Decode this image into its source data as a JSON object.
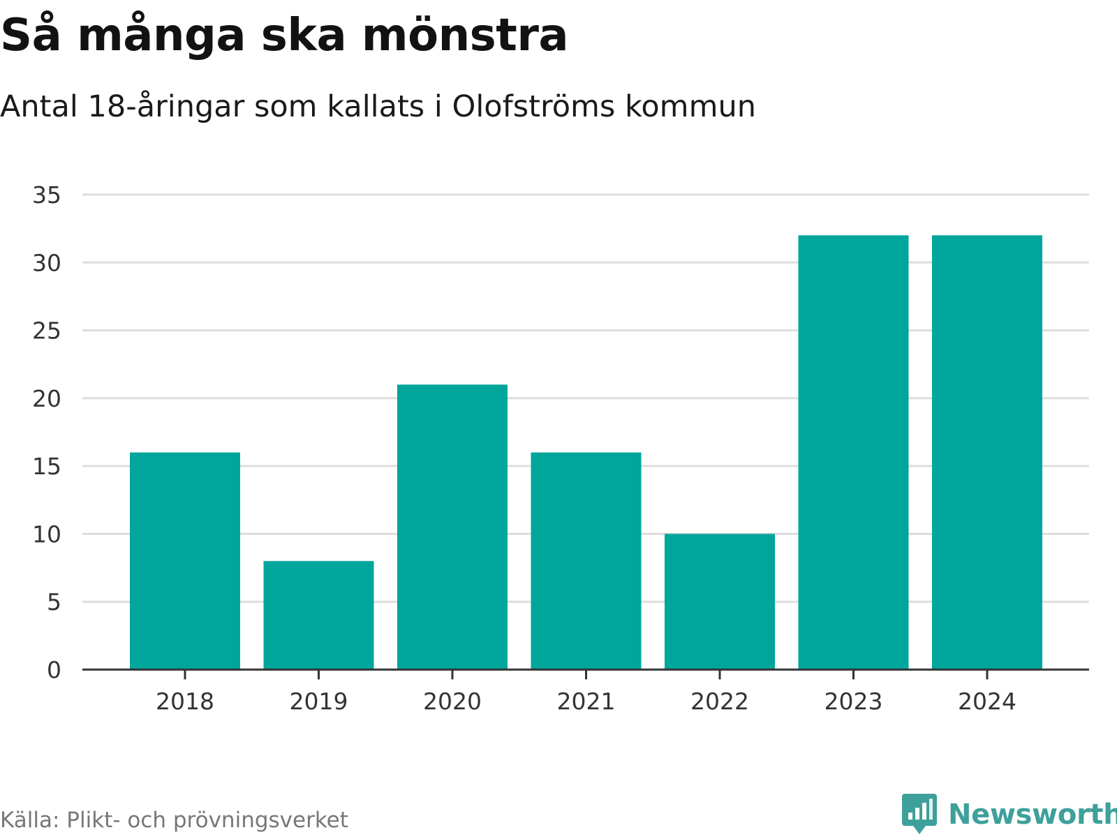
{
  "chart_data": {
    "type": "bar",
    "title": "Så många ska mönstra",
    "subtitle": "Antal 18-åringar som kallats i Olofströms kommun",
    "categories": [
      "2018",
      "2019",
      "2020",
      "2021",
      "2022",
      "2023",
      "2024"
    ],
    "values": [
      16,
      8,
      21,
      16,
      10,
      32,
      32
    ],
    "ylim": [
      0,
      35
    ],
    "yticks": [
      0,
      5,
      10,
      15,
      20,
      25,
      30,
      35
    ],
    "xlabel": "",
    "ylabel": "",
    "grid": true,
    "bar_color": "#00a59b",
    "grid_color": "#dddddd",
    "axis_color": "#333333"
  },
  "source": "Källa: Plikt- och prövningsverket",
  "brand": {
    "name": "Newsworthy",
    "icon": "newsworthy-logo-icon",
    "color": "#3ea09a"
  }
}
